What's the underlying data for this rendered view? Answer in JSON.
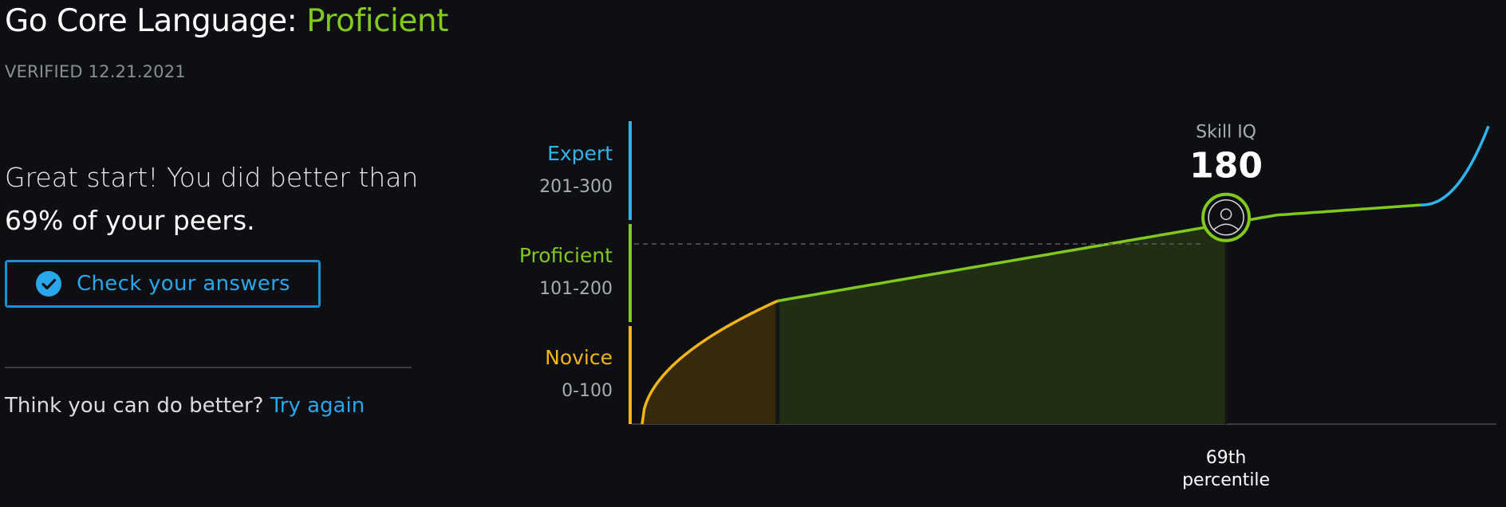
{
  "header": {
    "title_prefix": "Go Core Language: ",
    "level": "Proficient",
    "verified": "VERIFIED 12.21.2021"
  },
  "summary": {
    "line1": "Great start! You did better than",
    "line2": "69% of your peers."
  },
  "check_button": {
    "label": "Check your answers",
    "icon": "check-circle-icon"
  },
  "retry": {
    "prompt": "Think you can do better? ",
    "link": "Try again"
  },
  "chart_data": {
    "type": "area",
    "bands": [
      {
        "name": "Expert",
        "range": "201-300",
        "color": "#2fb5ee"
      },
      {
        "name": "Proficient",
        "range": "101-200",
        "color": "#82c91e"
      },
      {
        "name": "Novice",
        "range": "0-100",
        "color": "#f2b514"
      }
    ],
    "score_label": "Skill IQ",
    "score": "180",
    "score_value": 180,
    "percentile_value": 69,
    "percentile_line1": "69th",
    "percentile_line2": "percentile",
    "ylim": [
      0,
      300
    ],
    "xlim": [
      0,
      100
    ],
    "marker_icon": "user-avatar-icon"
  }
}
